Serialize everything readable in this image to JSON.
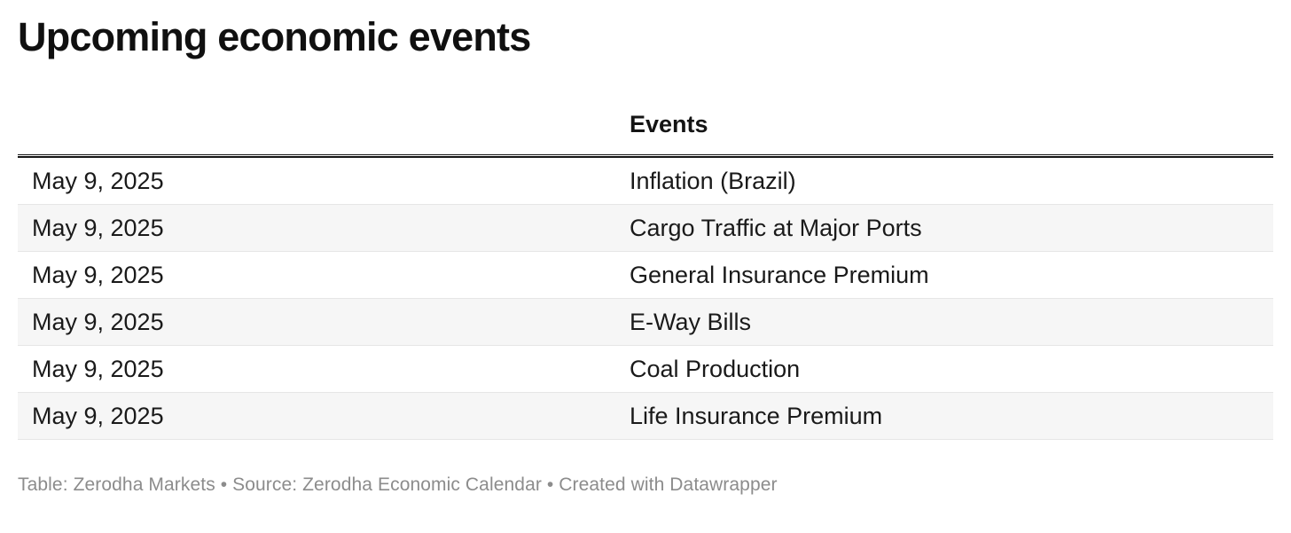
{
  "chart_data": {
    "type": "table",
    "title": "Upcoming economic events",
    "columns": {
      "date": "",
      "events": "Events"
    },
    "rows": [
      {
        "date": "May 9, 2025",
        "event": "Inflation (Brazil)"
      },
      {
        "date": "May 9, 2025",
        "event": "Cargo Traffic at Major Ports"
      },
      {
        "date": "May 9, 2025",
        "event": "General Insurance Premium"
      },
      {
        "date": "May 9, 2025",
        "event": "E-Way Bills"
      },
      {
        "date": "May 9, 2025",
        "event": "Coal Production"
      },
      {
        "date": "May 9, 2025",
        "event": "Life Insurance Premium"
      }
    ],
    "footer": "Table: Zerodha Markets • Source: Zerodha Economic Calendar • Created with Datawrapper",
    "layout_hints": {
      "striped_rows": true,
      "header_rule": "double-black",
      "legend_position": "none",
      "grid": "horizontal-row-separators"
    },
    "colors": {
      "title_text": "#101010",
      "header_text": "#141414",
      "header_rule": "#141414",
      "cell_text": "#1a1a1a",
      "row_stripe": "#f6f6f6",
      "row_separator": "#e6e6e6",
      "footer_text": "#8c8c8c",
      "background": "#ffffff"
    }
  }
}
